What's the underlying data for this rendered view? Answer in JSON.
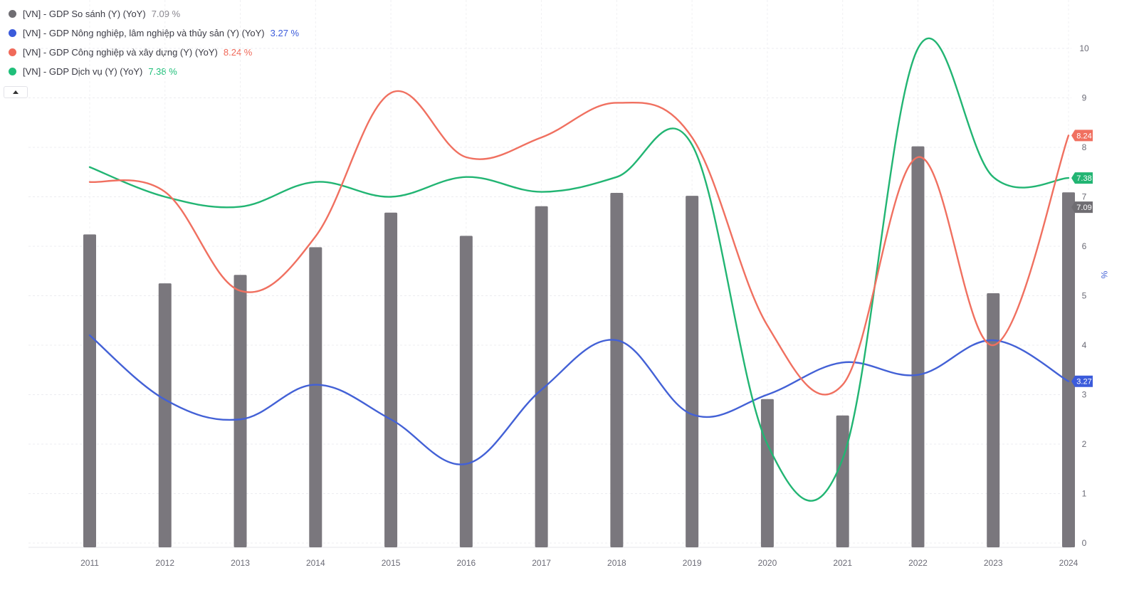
{
  "legend": {
    "items": [
      {
        "label": "[VN] - GDP So sánh (Y) (YoY)",
        "value": "7.09 %",
        "color": "#6f6d72"
      },
      {
        "label": "[VN] - GDP Nông nghiệp, lâm nghiệp và thủy sản (Y) (YoY)",
        "value": "3.27 %",
        "color": "#3b5bdb"
      },
      {
        "label": "[VN] - GDP Công nghiệp và xây dựng (Y) (YoY)",
        "value": "8.24 %",
        "color": "#f06a5a"
      },
      {
        "label": "[VN] - GDP Dịch vụ (Y) (YoY)",
        "value": "7.38 %",
        "color": "#1fbf7a"
      }
    ]
  },
  "chart_data": {
    "type": "bar+line",
    "categories": [
      "2011",
      "2012",
      "2013",
      "2014",
      "2015",
      "2016",
      "2017",
      "2018",
      "2019",
      "2020",
      "2021",
      "2022",
      "2023",
      "2024"
    ],
    "ylabel": "%",
    "ylim": [
      0,
      10.5
    ],
    "y_ticks": [
      "0",
      "1",
      "2",
      "3",
      "4",
      "5",
      "6",
      "7",
      "8",
      "9",
      "10"
    ],
    "grid": true,
    "series": [
      {
        "name": "[VN] - GDP So sánh (Y) (YoY)",
        "kind": "bar",
        "color": "#7a777d",
        "values": [
          6.24,
          5.25,
          5.42,
          5.98,
          6.68,
          6.21,
          6.81,
          7.08,
          7.02,
          2.91,
          2.58,
          8.02,
          5.05,
          7.09
        ],
        "end_label": "7.09"
      },
      {
        "name": "[VN] - GDP Nông nghiệp, lâm nghiệp và thủy sản (Y) (YoY)",
        "kind": "line",
        "color": "#4361d6",
        "values": [
          4.2,
          2.9,
          2.5,
          3.2,
          2.5,
          1.6,
          3.1,
          4.1,
          2.6,
          3.0,
          3.65,
          3.4,
          4.1,
          3.27
        ],
        "end_label": "3.27"
      },
      {
        "name": "[VN] - GDP Công nghiệp và xây dựng (Y) (YoY)",
        "kind": "line",
        "color": "#f07060",
        "values": [
          7.3,
          7.1,
          5.1,
          6.2,
          9.1,
          7.8,
          8.2,
          8.9,
          8.2,
          4.4,
          3.2,
          7.8,
          4.0,
          8.24
        ],
        "end_label": "8.24"
      },
      {
        "name": "[VN] - GDP Dịch vụ (Y) (YoY)",
        "kind": "line",
        "color": "#22b573",
        "values": [
          7.6,
          7.0,
          6.8,
          7.3,
          7.0,
          7.4,
          7.1,
          7.4,
          8.05,
          2.0,
          1.7,
          10.0,
          7.4,
          7.38
        ],
        "end_label": "7.38"
      }
    ]
  }
}
